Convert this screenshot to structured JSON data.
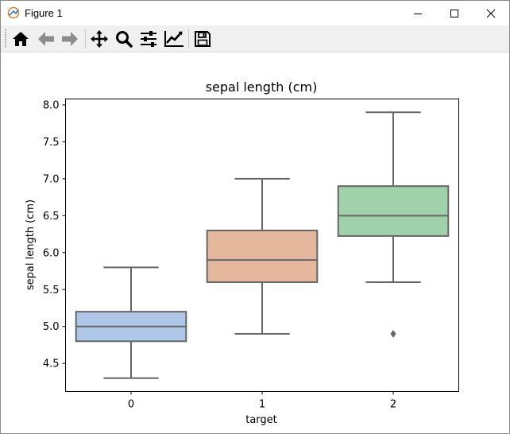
{
  "window": {
    "title": "Figure 1",
    "controls": [
      "minimize",
      "maximize",
      "close"
    ]
  },
  "toolbar": {
    "buttons": [
      {
        "name": "home",
        "icon": "home-icon"
      },
      {
        "name": "back",
        "icon": "back-arrow-icon"
      },
      {
        "name": "forward",
        "icon": "forward-arrow-icon"
      },
      {
        "name": "pan",
        "icon": "move-icon"
      },
      {
        "name": "zoom",
        "icon": "zoom-icon"
      },
      {
        "name": "configure-subplots",
        "icon": "sliders-icon"
      },
      {
        "name": "edit-axis",
        "icon": "line-chart-icon"
      },
      {
        "name": "save",
        "icon": "save-icon"
      }
    ]
  },
  "chart_data": {
    "type": "box",
    "title": "sepal length (cm)",
    "xlabel": "target",
    "ylabel": "sepal length (cm)",
    "categories": [
      "0",
      "1",
      "2"
    ],
    "ylim": [
      4.12,
      8.08
    ],
    "yticks": [
      "4.5",
      "5.0",
      "5.5",
      "6.0",
      "6.5",
      "7.0",
      "7.5",
      "8.0"
    ],
    "boxes": [
      {
        "category": "0",
        "whisker_low": 4.3,
        "q1": 4.8,
        "median": 5.0,
        "q3": 5.2,
        "whisker_high": 5.8,
        "outliers": [],
        "color": "#aec7e8"
      },
      {
        "category": "1",
        "whisker_low": 4.9,
        "q1": 5.6,
        "median": 5.9,
        "q3": 6.3,
        "whisker_high": 7.0,
        "outliers": [],
        "color": "#e5b89d"
      },
      {
        "category": "2",
        "whisker_low": 5.6,
        "q1": 6.225,
        "median": 6.5,
        "q3": 6.9,
        "whisker_high": 7.9,
        "outliers": [
          4.9
        ],
        "color": "#a1d1aa"
      }
    ],
    "line_color": "#666666",
    "grid": false,
    "legend": "none"
  }
}
